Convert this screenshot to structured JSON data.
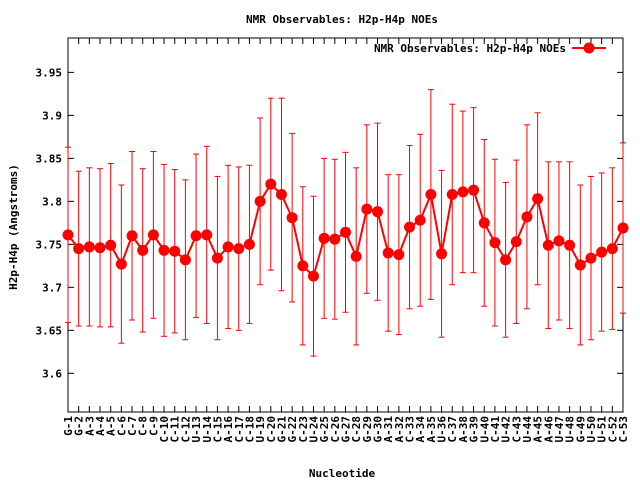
{
  "chart_data": {
    "type": "line",
    "title": "NMR Observables: H2p-H4p NOEs",
    "xlabel": "Nucleotide",
    "ylabel": "H2p-H4p (Angstroms)",
    "ylim": [
      3.555,
      3.99
    ],
    "yticks": [
      3.6,
      3.65,
      3.7,
      3.75,
      3.8,
      3.85,
      3.9,
      3.95
    ],
    "ytick_labels": [
      "3.6",
      "3.65",
      "3.7",
      "3.75",
      "3.8",
      "3.85",
      "3.9",
      "3.95"
    ],
    "grid": false,
    "legend_position": "top-right",
    "categories": [
      "G-1",
      "G-2",
      "A-3",
      "A-4",
      "A-5",
      "C-6",
      "C-7",
      "C-8",
      "C-9",
      "C-10",
      "C-11",
      "C-12",
      "U-13",
      "U-14",
      "C-15",
      "A-16",
      "C-17",
      "C-18",
      "U-19",
      "C-20",
      "G-21",
      "G-22",
      "C-23",
      "U-24",
      "G-25",
      "C-26",
      "G-27",
      "C-28",
      "G-29",
      "G-30",
      "A-31",
      "A-32",
      "C-33",
      "A-34",
      "A-35",
      "U-36",
      "C-37",
      "A-38",
      "G-39",
      "U-40",
      "C-41",
      "U-42",
      "C-43",
      "U-44",
      "A-45",
      "A-46",
      "U-47",
      "U-48",
      "G-49",
      "U-50",
      "U-51",
      "C-52",
      "C-53"
    ],
    "series": [
      {
        "name": "NMR Observables: H2p-H4p NOEs",
        "color": "#ff0000",
        "values": [
          3.761,
          3.745,
          3.747,
          3.746,
          3.749,
          3.727,
          3.76,
          3.743,
          3.761,
          3.743,
          3.742,
          3.732,
          3.76,
          3.761,
          3.734,
          3.747,
          3.745,
          3.75,
          3.8,
          3.82,
          3.808,
          3.781,
          3.725,
          3.713,
          3.757,
          3.756,
          3.764,
          3.736,
          3.791,
          3.788,
          3.74,
          3.738,
          3.77,
          3.778,
          3.808,
          3.739,
          3.808,
          3.811,
          3.813,
          3.775,
          3.752,
          3.732,
          3.753,
          3.782,
          3.803,
          3.749,
          3.754,
          3.749,
          3.726,
          3.734,
          3.741,
          3.745,
          3.769
        ],
        "errors": [
          0.102,
          0.09,
          0.092,
          0.092,
          0.095,
          0.092,
          0.098,
          0.095,
          0.097,
          0.1,
          0.095,
          0.093,
          0.095,
          0.103,
          0.095,
          0.095,
          0.095,
          0.092,
          0.097,
          0.1,
          0.112,
          0.098,
          0.092,
          0.093,
          0.093,
          0.093,
          0.093,
          0.103,
          0.098,
          0.103,
          0.091,
          0.093,
          0.095,
          0.1,
          0.122,
          0.097,
          0.105,
          0.094,
          0.096,
          0.097,
          0.097,
          0.09,
          0.095,
          0.107,
          0.1,
          0.097,
          0.092,
          0.097,
          0.093,
          0.095,
          0.092,
          0.094,
          0.099
        ]
      }
    ]
  }
}
